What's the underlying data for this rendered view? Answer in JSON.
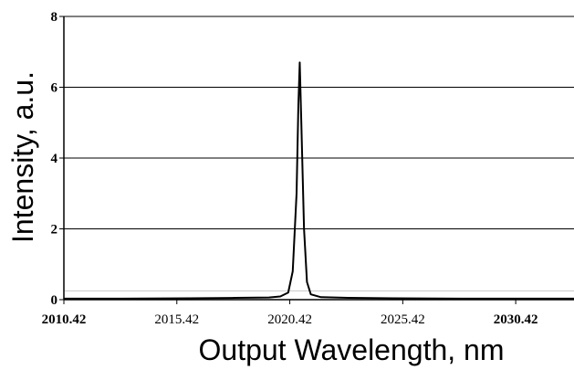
{
  "chart_data": {
    "type": "line",
    "title": "",
    "xlabel": "Output Wavelength,  nm",
    "ylabel": "Intensity,  a.u.",
    "xlim": [
      2010.42,
      2033.0
    ],
    "ylim": [
      0,
      8
    ],
    "x_ticks": [
      {
        "value": 2010.42,
        "label": "2010.42",
        "bold": true
      },
      {
        "value": 2015.42,
        "label": "2015.42",
        "bold": false
      },
      {
        "value": 2020.42,
        "label": "2020.42",
        "bold": false
      },
      {
        "value": 2025.42,
        "label": "2025.42",
        "bold": false
      },
      {
        "value": 2030.42,
        "label": "2030.42",
        "bold": true
      }
    ],
    "y_ticks": [
      {
        "value": 0,
        "label": "0"
      },
      {
        "value": 2,
        "label": "2"
      },
      {
        "value": 4,
        "label": "4"
      },
      {
        "value": 6,
        "label": "6"
      },
      {
        "value": 8,
        "label": "8"
      }
    ],
    "grid": "horizontal",
    "series": [
      {
        "color": "#000000",
        "points": [
          [
            2010.42,
            0.03
          ],
          [
            2013.0,
            0.03
          ],
          [
            2016.0,
            0.04
          ],
          [
            2018.0,
            0.05
          ],
          [
            2019.5,
            0.06
          ],
          [
            2020.0,
            0.09
          ],
          [
            2020.35,
            0.2
          ],
          [
            2020.55,
            0.8
          ],
          [
            2020.72,
            3.0
          ],
          [
            2020.8,
            5.5
          ],
          [
            2020.86,
            6.7
          ],
          [
            2020.93,
            5.0
          ],
          [
            2021.05,
            2.0
          ],
          [
            2021.18,
            0.5
          ],
          [
            2021.35,
            0.15
          ],
          [
            2021.8,
            0.07
          ],
          [
            2023.0,
            0.05
          ],
          [
            2025.0,
            0.04
          ],
          [
            2028.0,
            0.03
          ],
          [
            2033.0,
            0.03
          ]
        ]
      }
    ]
  }
}
